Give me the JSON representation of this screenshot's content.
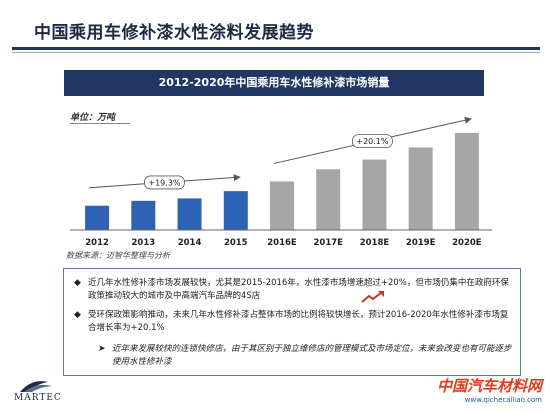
{
  "slide": {
    "title": "中国乘用车修补漆水性涂料发展趋势"
  },
  "chart_data": {
    "type": "bar",
    "title": "2012-2020年中国乘用车水性修补漆市场销量",
    "unit": "单位：万吨",
    "categories": [
      "2012",
      "2013",
      "2014",
      "2015",
      "2016E",
      "2017E",
      "2018E",
      "2019E",
      "2020E"
    ],
    "values": [
      1.0,
      1.2,
      1.3,
      1.6,
      2.0,
      2.5,
      2.9,
      3.4,
      4.0
    ],
    "ylim": [
      0,
      4.2
    ],
    "grid": false,
    "colors": {
      "actual": "#2e62b5",
      "forecast": "#a6a6a6",
      "arrow": "#555555"
    },
    "annotations": [
      {
        "text": "+19.3%",
        "from": "2012",
        "to": "2015"
      },
      {
        "text": "+20.1%",
        "from": "2016E",
        "to": "2020E"
      }
    ]
  },
  "source": "数据来源：迈智华整理与分析",
  "notes": {
    "bullet_1": "近几年水性修补漆市场发展较快，尤其是2015-2016年，水性漆市场增速超过+20%，但市场仍集中在政府环保政策推动较大的城市及中高端汽车品牌的4S店",
    "bullet_2": "受环保政策影响推动，未来几年水性修补漆占整体市场的比例将较快增长，预计2016-2020年水性修补漆市场复合增长率为+20.1%",
    "sub_bullet": "近年来发展较快的连锁快修店，由于其区别于独立维修店的管理模式及市场定位，未来会改变也有可能逐步使用水性修补漆"
  },
  "logo": {
    "name": "MARTEC"
  },
  "watermark": {
    "main": "中国汽车材料网",
    "url": "www.qichecailiao.com"
  }
}
